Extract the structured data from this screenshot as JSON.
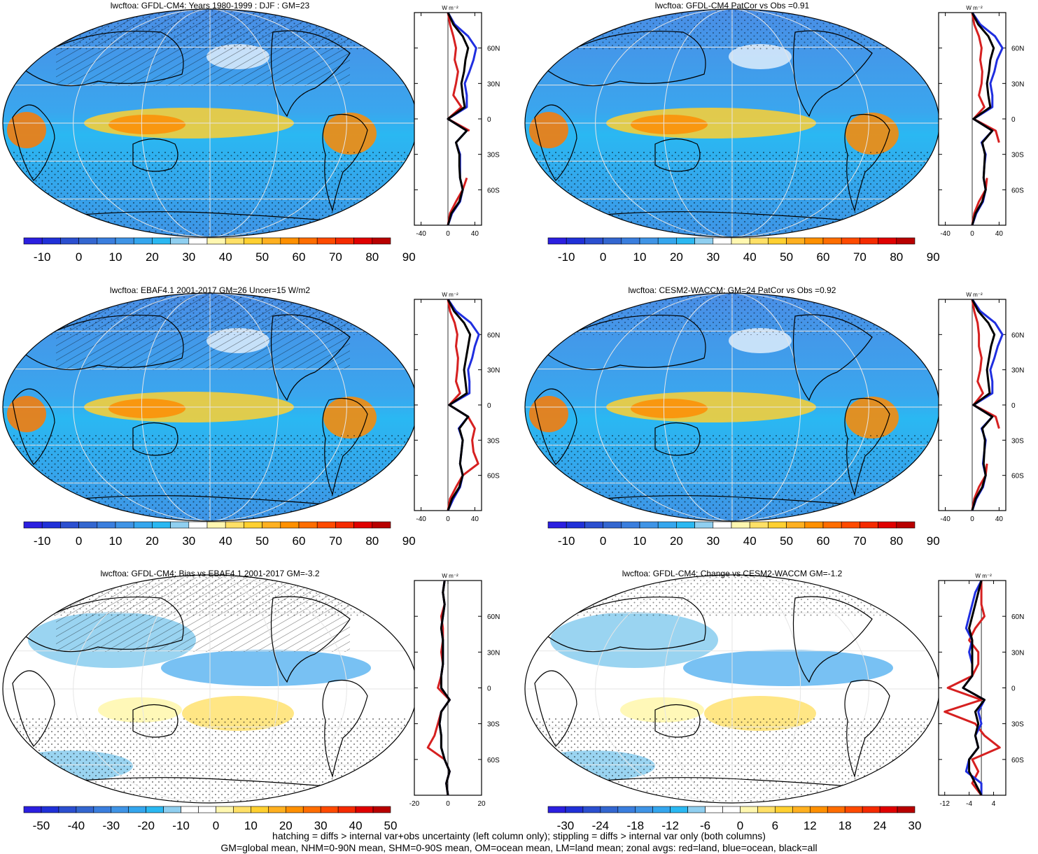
{
  "colors": {
    "abs_palette": [
      "#2b1fe0",
      "#2030d8",
      "#2b4fd0",
      "#3366d0",
      "#3a7ede",
      "#3f94e6",
      "#34a6ee",
      "#2ab8f2",
      "#8fcff0",
      "#ffffff",
      "#fff7b0",
      "#ffe066",
      "#ffd030",
      "#ffb020",
      "#ff9000",
      "#ff6d00",
      "#ff4a00",
      "#f52a00",
      "#e00000",
      "#b80000"
    ],
    "diff_palette": [
      "#2b1fe0",
      "#2030d8",
      "#2b4fd0",
      "#3366d0",
      "#3a7ede",
      "#3f94e6",
      "#34a6ee",
      "#2ab8f2",
      "#8fcff0",
      "#ffffff",
      "#ffffff",
      "#fff7b0",
      "#ffe066",
      "#ffd030",
      "#ffb020",
      "#ff9000",
      "#ff6d00",
      "#ff4a00",
      "#f52a00",
      "#e00000",
      "#b80000"
    ],
    "land": "#d62020",
    "ocean": "#1f2ee0",
    "all": "#000000"
  },
  "panels": [
    {
      "title": "lwcftoa: GFDL-CM4: Years 1980-1999 : DJF : GM=23",
      "cb_labels": [
        "-10",
        "0",
        "10",
        "20",
        "30",
        "40",
        "50",
        "60",
        "70",
        "80",
        "90"
      ],
      "kind": "abs",
      "hatch": true
    },
    {
      "title": "lwcftoa: GFDL-CM4 PatCor vs Obs =0.91",
      "cb_labels": [
        "-10",
        "0",
        "10",
        "20",
        "30",
        "40",
        "50",
        "60",
        "70",
        "80",
        "90"
      ],
      "kind": "abs",
      "hatch": false
    },
    {
      "title": "lwcftoa: EBAF4.1 2001-2017 GM=26 Uncer=15 W/m2",
      "cb_labels": [
        "-10",
        "0",
        "10",
        "20",
        "30",
        "40",
        "50",
        "60",
        "70",
        "80",
        "90"
      ],
      "kind": "abs",
      "hatch": true
    },
    {
      "title": "lwcftoa: CESM2-WACCM: GM=24 PatCor vs Obs =0.92",
      "cb_labels": [
        "-10",
        "0",
        "10",
        "20",
        "30",
        "40",
        "50",
        "60",
        "70",
        "80",
        "90"
      ],
      "kind": "abs",
      "hatch": false
    },
    {
      "title": "lwcftoa: GFDL-CM4: Bias vs EBAF4.1 2001-2017 GM=-3.2",
      "cb_labels": [
        "-50",
        "-40",
        "-30",
        "-20",
        "-10",
        "0",
        "10",
        "20",
        "30",
        "40",
        "50"
      ],
      "kind": "diff",
      "hatch": true
    },
    {
      "title": "lwcftoa: GFDL-CM4: Change vs CESM2-WACCM GM=-1.2",
      "cb_labels": [
        "-30",
        "-24",
        "-18",
        "-12",
        "-6",
        "0",
        "6",
        "12",
        "18",
        "24",
        "30"
      ],
      "kind": "diff",
      "hatch": false
    }
  ],
  "chart_data": [
    {
      "type": "line",
      "ylim": [
        -90,
        90
      ],
      "lat_ticks": [
        60,
        30,
        0,
        -30,
        -60
      ],
      "lat_labels": [
        "60N",
        "30N",
        "0",
        "30S",
        "60S"
      ],
      "xlim": [
        -50,
        50
      ],
      "x_ticks": [
        -40,
        0,
        40
      ],
      "x_labels": [
        "-40",
        "0",
        "40"
      ],
      "unit_label": "W m⁻²",
      "lat": [
        -90,
        -80,
        -70,
        -60,
        -50,
        -40,
        -30,
        -20,
        -10,
        0,
        10,
        20,
        30,
        40,
        50,
        60,
        70,
        80,
        90
      ],
      "series": [
        {
          "color_key": "land",
          "values": [
            0,
            3,
            12,
            22,
            28,
            null,
            null,
            null,
            32,
            0,
            20,
            8,
            12,
            15,
            10,
            12,
            8,
            3,
            0
          ]
        },
        {
          "color_key": "ocean",
          "values": [
            0,
            6,
            18,
            22,
            18,
            18,
            18,
            12,
            28,
            0,
            28,
            28,
            25,
            32,
            38,
            42,
            30,
            10,
            0
          ]
        },
        {
          "color_key": "all",
          "values": [
            0,
            5,
            17,
            22,
            18,
            17,
            17,
            12,
            28,
            0,
            25,
            22,
            20,
            24,
            26,
            30,
            22,
            8,
            0
          ]
        }
      ]
    },
    {
      "type": "line",
      "ylim": [
        -90,
        90
      ],
      "lat_ticks": [
        60,
        30,
        0,
        -30,
        -60
      ],
      "lat_labels": [
        "60N",
        "30N",
        "0",
        "30S",
        "60S"
      ],
      "xlim": [
        -50,
        50
      ],
      "x_ticks": [
        -40,
        0,
        40
      ],
      "x_labels": [
        "-40",
        "0",
        "40"
      ],
      "unit_label": "W m⁻²",
      "lat": [
        -90,
        -80,
        -70,
        -60,
        -50,
        -40,
        -30,
        -20,
        -10,
        0,
        10,
        20,
        30,
        40,
        50,
        60,
        70,
        80,
        90
      ],
      "series": [
        {
          "color_key": "land",
          "values": [
            0,
            3,
            10,
            20,
            22,
            null,
            null,
            40,
            35,
            2,
            18,
            10,
            14,
            15,
            12,
            14,
            10,
            3,
            0
          ]
        },
        {
          "color_key": "ocean",
          "values": [
            0,
            6,
            16,
            20,
            17,
            18,
            20,
            14,
            30,
            2,
            30,
            30,
            27,
            33,
            37,
            45,
            34,
            12,
            0
          ]
        },
        {
          "color_key": "all",
          "values": [
            0,
            5,
            15,
            20,
            17,
            18,
            19,
            15,
            30,
            2,
            27,
            24,
            22,
            25,
            27,
            32,
            24,
            9,
            0
          ]
        }
      ]
    },
    {
      "type": "line",
      "ylim": [
        -90,
        90
      ],
      "lat_ticks": [
        60,
        30,
        0,
        -30,
        -60
      ],
      "lat_labels": [
        "60N",
        "30N",
        "0",
        "30S",
        "60S"
      ],
      "xlim": [
        -50,
        50
      ],
      "x_ticks": [
        -40,
        0,
        40
      ],
      "x_labels": [
        "-40",
        "0",
        "40"
      ],
      "unit_label": "W m⁻²",
      "lat": [
        -90,
        -80,
        -70,
        -60,
        -50,
        -40,
        -30,
        -20,
        -10,
        0,
        10,
        20,
        30,
        40,
        50,
        60,
        70,
        80,
        90
      ],
      "series": [
        {
          "color_key": "land",
          "values": [
            0,
            3,
            12,
            22,
            45,
            38,
            36,
            40,
            30,
            2,
            18,
            12,
            14,
            15,
            12,
            14,
            10,
            3,
            0
          ]
        },
        {
          "color_key": "ocean",
          "values": [
            0,
            8,
            18,
            22,
            18,
            20,
            22,
            16,
            30,
            2,
            32,
            32,
            30,
            36,
            40,
            46,
            34,
            12,
            0
          ]
        },
        {
          "color_key": "all",
          "values": [
            0,
            6,
            17,
            22,
            18,
            20,
            22,
            17,
            30,
            2,
            28,
            26,
            24,
            27,
            30,
            33,
            24,
            9,
            0
          ]
        }
      ]
    },
    {
      "type": "line",
      "ylim": [
        -90,
        90
      ],
      "lat_ticks": [
        60,
        30,
        0,
        -30,
        -60
      ],
      "lat_labels": [
        "60N",
        "30N",
        "0",
        "30S",
        "60S"
      ],
      "xlim": [
        -50,
        50
      ],
      "x_ticks": [
        -40,
        0,
        40
      ],
      "x_labels": [
        "-40",
        "0",
        "40"
      ],
      "unit_label": "W m⁻²",
      "lat": [
        -90,
        -80,
        -70,
        -60,
        -50,
        -40,
        -30,
        -20,
        -10,
        0,
        10,
        20,
        30,
        40,
        50,
        60,
        70,
        80,
        90
      ],
      "series": [
        {
          "color_key": "land",
          "values": [
            0,
            3,
            10,
            20,
            22,
            null,
            null,
            40,
            35,
            2,
            16,
            8,
            12,
            14,
            10,
            10,
            8,
            3,
            0
          ]
        },
        {
          "color_key": "ocean",
          "values": [
            0,
            6,
            16,
            20,
            16,
            18,
            20,
            14,
            30,
            2,
            30,
            30,
            27,
            33,
            38,
            45,
            34,
            12,
            0
          ]
        },
        {
          "color_key": "all",
          "values": [
            0,
            5,
            15,
            20,
            17,
            18,
            19,
            15,
            30,
            2,
            26,
            24,
            22,
            25,
            28,
            33,
            24,
            9,
            0
          ]
        }
      ]
    },
    {
      "type": "line",
      "ylim": [
        -90,
        90
      ],
      "lat_ticks": [
        60,
        30,
        0,
        -30,
        -60
      ],
      "lat_labels": [
        "60N",
        "30N",
        "0",
        "30S",
        "60S"
      ],
      "xlim": [
        -20,
        20
      ],
      "x_ticks": [
        -20,
        0,
        20
      ],
      "x_labels": [
        "-20",
        "0",
        "20"
      ],
      "unit_label": "W m⁻²",
      "lat": [
        -90,
        -80,
        -70,
        -60,
        -50,
        -40,
        -30,
        -20,
        -10,
        0,
        10,
        20,
        30,
        40,
        50,
        60,
        70,
        80,
        90
      ],
      "series": [
        {
          "color_key": "land",
          "values": [
            0,
            -1,
            1,
            -2,
            -12,
            -8,
            -6,
            -4,
            1,
            -6,
            -4,
            -3,
            -4,
            -3,
            -3,
            -4,
            -2,
            -3,
            -2
          ]
        },
        {
          "color_key": "ocean",
          "values": [
            0,
            -1,
            1,
            -2,
            -4,
            -4,
            -5,
            -4,
            1,
            -4,
            -4,
            -3,
            -3,
            -3,
            -4,
            -3,
            -2,
            -3,
            -2
          ]
        },
        {
          "color_key": "all",
          "values": [
            0,
            -1,
            1,
            -2,
            -4,
            -4,
            -5,
            -4,
            1,
            -4,
            -4,
            -3,
            -3,
            -3,
            -4,
            -3,
            -2,
            -3,
            -2
          ]
        }
      ]
    },
    {
      "type": "line",
      "ylim": [
        -90,
        90
      ],
      "lat_ticks": [
        60,
        30,
        0,
        -30,
        -60
      ],
      "lat_labels": [
        "60N",
        "30N",
        "0",
        "30S",
        "60S"
      ],
      "xlim": [
        -14,
        8
      ],
      "x_ticks": [
        -12,
        -4,
        4
      ],
      "x_labels": [
        "-12",
        "-4",
        "4"
      ],
      "unit_label": "W m⁻²",
      "lat": [
        -90,
        -80,
        -70,
        -60,
        -50,
        -40,
        -30,
        -20,
        -10,
        0,
        10,
        20,
        30,
        40,
        50,
        60,
        70,
        80,
        90
      ],
      "series": [
        {
          "color_key": "land",
          "values": [
            0,
            -3,
            -1,
            -3,
            6,
            1,
            -2,
            -12,
            0,
            -11,
            -3,
            -1,
            -1,
            -4,
            -2,
            1,
            0,
            0,
            0
          ]
        },
        {
          "color_key": "ocean",
          "values": [
            0,
            0,
            -5,
            -4,
            -1,
            -2,
            0,
            -1,
            1,
            -6,
            -3,
            -3,
            -4,
            -3,
            -5,
            -4,
            -3,
            -2,
            0
          ]
        },
        {
          "color_key": "all",
          "values": [
            0,
            -2,
            -4,
            -4,
            -1,
            -2,
            -1,
            -2,
            1,
            -6,
            -3,
            -3,
            -3,
            -3,
            -4,
            -3,
            -2,
            -1,
            0
          ]
        }
      ]
    }
  ],
  "footer": {
    "line1": "hatching = diffs > internal var+obs uncertainty (left column only); stippling = diffs > internal var only (both columns)",
    "line2": "GM=global mean, NHM=0-90N mean, SHM=0-90S mean, OM=ocean mean, LM=land mean; zonal avgs: red=land, blue=ocean, black=all"
  }
}
